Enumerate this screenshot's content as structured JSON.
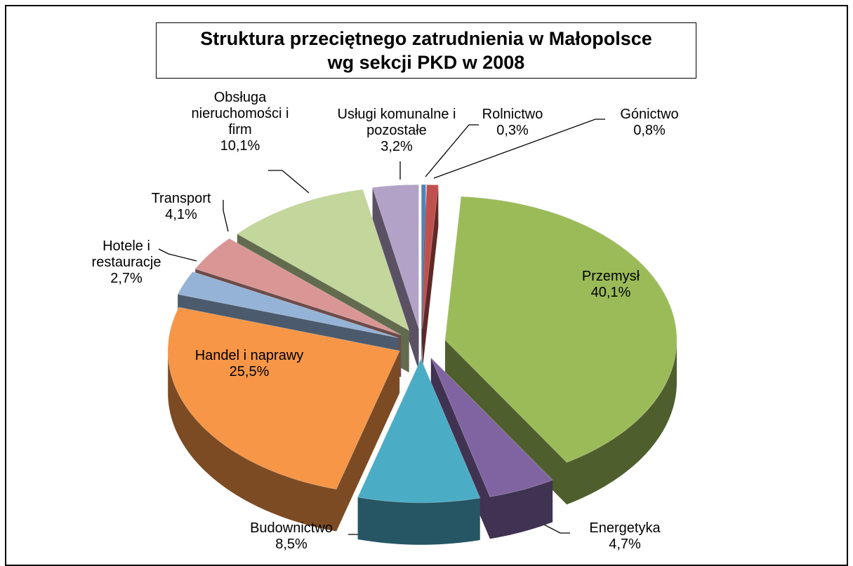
{
  "chart_data": {
    "type": "pie3d",
    "title": "Struktura przeciętnego zatrudnienia w Małopolsce\nwg sekcji PKD w 2008",
    "categories": [
      "Rolnictwo",
      "Gónictwo",
      "Przemysł",
      "Energetyka",
      "Budownictwo",
      "Handel i naprawy",
      "Hotele i\nrestauracje",
      "Transport",
      "Obsługa\nnieruchomości i\nfirm",
      "Usługi komunalne i\npozostałe"
    ],
    "values": [
      0.3,
      0.8,
      40.1,
      4.7,
      8.5,
      25.5,
      2.7,
      4.1,
      10.1,
      3.2
    ],
    "value_labels": [
      "0,3%",
      "0,8%",
      "40,1%",
      "4,7%",
      "8,5%",
      "25,5%",
      "2,7%",
      "4,1%",
      "10,1%",
      "3,2%"
    ],
    "colors": [
      "#4f81bd",
      "#c0504d",
      "#9bbb59",
      "#8064a2",
      "#4bacc6",
      "#f79646",
      "#95b3d7",
      "#d99694",
      "#c3d69b",
      "#b3a2c7"
    ]
  }
}
